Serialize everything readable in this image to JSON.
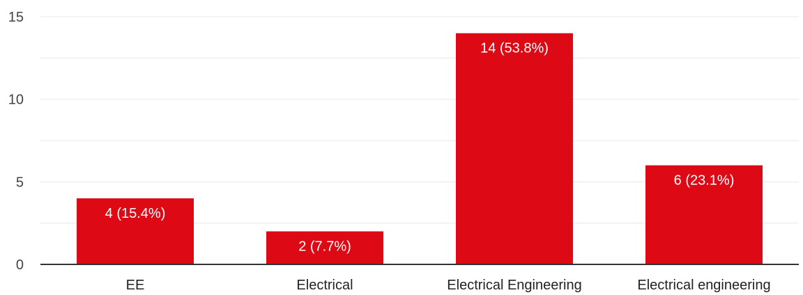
{
  "chart_data": {
    "type": "bar",
    "categories": [
      "EE",
      "Electrical",
      "Electrical Engineering",
      "Electrical engineering"
    ],
    "values": [
      4,
      2,
      14,
      6
    ],
    "data_labels": [
      "4 (15.4%)",
      "2 (7.7%)",
      "14 (53.8%)",
      "6 (23.1%)"
    ],
    "title": "",
    "xlabel": "",
    "ylabel": "",
    "ylim": [
      0,
      15
    ],
    "yticks": [
      0,
      5,
      10,
      15
    ],
    "grid": true,
    "legend": "none",
    "colors": {
      "bar": "#dd0a16",
      "grid": "#e8e8e8",
      "axis": "#333333"
    }
  }
}
